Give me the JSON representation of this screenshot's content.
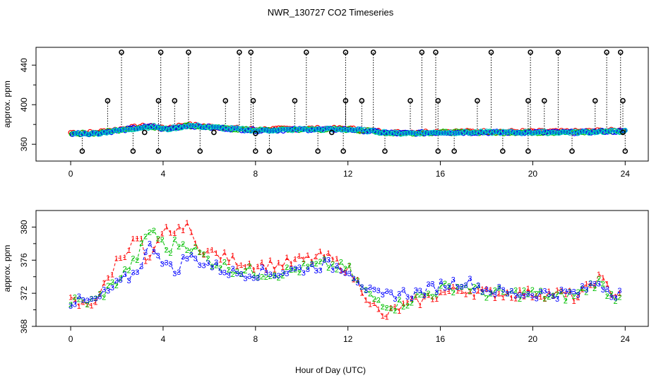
{
  "chart_data": [
    {
      "type": "scatter",
      "panel": "top",
      "title": "NWR_130727  CO2 Timeseries",
      "xlabel": "",
      "ylabel": "approx. ppm",
      "xlim": [
        -1.5,
        25
      ],
      "ylim": [
        343,
        458
      ],
      "xticks": [
        "0",
        "4",
        "8",
        "12",
        "16",
        "20",
        "24"
      ],
      "yticks": [
        "360",
        "400",
        "440"
      ],
      "marker": "o",
      "series_colors": [
        "#ff0000",
        "#00c000",
        "#0000ff",
        "#00cccc"
      ],
      "baseline_knots": [
        [
          0,
          371
        ],
        [
          1,
          371
        ],
        [
          2,
          374
        ],
        [
          3,
          377
        ],
        [
          3.5,
          378
        ],
        [
          4,
          375
        ],
        [
          5,
          379
        ],
        [
          6,
          377
        ],
        [
          8,
          374
        ],
        [
          10,
          375
        ],
        [
          12,
          375
        ],
        [
          13,
          373
        ],
        [
          14,
          371
        ],
        [
          16,
          372
        ],
        [
          18,
          372
        ],
        [
          20,
          372
        ],
        [
          22,
          372
        ],
        [
          23,
          373
        ],
        [
          24,
          373
        ]
      ],
      "flagged_high": [
        [
          2.2,
          453
        ],
        [
          3.9,
          453
        ],
        [
          5.1,
          453
        ],
        [
          7.3,
          453
        ],
        [
          7.8,
          453
        ],
        [
          10.2,
          453
        ],
        [
          11.9,
          453
        ],
        [
          13.1,
          453
        ],
        [
          15.2,
          453
        ],
        [
          15.8,
          453
        ],
        [
          18.2,
          453
        ],
        [
          19.9,
          453
        ],
        [
          21.1,
          453
        ],
        [
          23.2,
          453
        ],
        [
          23.8,
          453
        ],
        [
          1.6,
          404
        ],
        [
          3.8,
          404
        ],
        [
          4.5,
          404
        ],
        [
          6.7,
          404
        ],
        [
          7.9,
          404
        ],
        [
          9.7,
          404
        ],
        [
          11.9,
          404
        ],
        [
          12.6,
          404
        ],
        [
          14.7,
          404
        ],
        [
          15.9,
          404
        ],
        [
          17.6,
          404
        ],
        [
          19.8,
          404
        ],
        [
          20.5,
          404
        ],
        [
          22.7,
          404
        ],
        [
          23.9,
          404
        ]
      ],
      "flagged_low": [
        [
          0.5,
          353
        ],
        [
          2.7,
          353
        ],
        [
          3.8,
          353
        ],
        [
          5.6,
          353
        ],
        [
          8.0,
          353
        ],
        [
          8.6,
          353
        ],
        [
          10.7,
          353
        ],
        [
          11.8,
          353
        ],
        [
          13.6,
          353
        ],
        [
          15.9,
          353
        ],
        [
          16.6,
          353
        ],
        [
          18.7,
          353
        ],
        [
          19.8,
          353
        ],
        [
          21.7,
          353
        ],
        [
          24.0,
          353
        ]
      ],
      "mid_markers": [
        [
          3.2,
          372
        ],
        [
          6.2,
          372
        ],
        [
          8.0,
          371
        ],
        [
          11.3,
          372
        ],
        [
          23.9,
          372
        ]
      ]
    },
    {
      "type": "scatter",
      "panel": "bottom",
      "title": "",
      "xlabel": "Hour of Day (UTC)",
      "ylabel": "approx. ppm",
      "xlim": [
        -1.5,
        25
      ],
      "ylim": [
        368,
        382
      ],
      "xticks": [
        "0",
        "4",
        "8",
        "12",
        "16",
        "20",
        "24"
      ],
      "yticks": [
        "368",
        "372",
        "376",
        "380"
      ],
      "series": [
        {
          "name": "1",
          "color": "#ff0000",
          "knots": [
            [
              0,
              371
            ],
            [
              0.5,
              370.5
            ],
            [
              1,
              371
            ],
            [
              1.5,
              373
            ],
            [
              2,
              376
            ],
            [
              2.5,
              377.5
            ],
            [
              3,
              379
            ],
            [
              3.3,
              375
            ],
            [
              3.8,
              378
            ],
            [
              4.2,
              380
            ],
            [
              4.6,
              379
            ],
            [
              5,
              381
            ],
            [
              5.3,
              378
            ],
            [
              6,
              377
            ],
            [
              7,
              376
            ],
            [
              8,
              375.5
            ],
            [
              9,
              375.5
            ],
            [
              10,
              376
            ],
            [
              11,
              376.5
            ],
            [
              12,
              375
            ],
            [
              12.5,
              373
            ],
            [
              13,
              371
            ],
            [
              13.5,
              369
            ],
            [
              14,
              370
            ],
            [
              15,
              371
            ],
            [
              16,
              372
            ],
            [
              17,
              372.5
            ],
            [
              18,
              372
            ],
            [
              19,
              372
            ],
            [
              20,
              372
            ],
            [
              21,
              372
            ],
            [
              22,
              371.5
            ],
            [
              22.8,
              374
            ],
            [
              23.5,
              372
            ],
            [
              23.8,
              372
            ]
          ]
        },
        {
          "name": "2",
          "color": "#00c000",
          "knots": [
            [
              0,
              371
            ],
            [
              1,
              371
            ],
            [
              2,
              373.5
            ],
            [
              2.8,
              376
            ],
            [
              3.5,
              380
            ],
            [
              4.2,
              377
            ],
            [
              4.5,
              378
            ],
            [
              5,
              378
            ],
            [
              6,
              376
            ],
            [
              7,
              375
            ],
            [
              8,
              374.5
            ],
            [
              9,
              374.5
            ],
            [
              10,
              375
            ],
            [
              11,
              375.5
            ],
            [
              12,
              375
            ],
            [
              12.5,
              373
            ],
            [
              13,
              371.5
            ],
            [
              13.5,
              371
            ],
            [
              14,
              370.5
            ],
            [
              15,
              371.5
            ],
            [
              16,
              372.5
            ],
            [
              17,
              373
            ],
            [
              18,
              372
            ],
            [
              19,
              372
            ],
            [
              20,
              372
            ],
            [
              21,
              371.5
            ],
            [
              22,
              372
            ],
            [
              22.8,
              373.5
            ],
            [
              23.5,
              371.5
            ],
            [
              23.8,
              372
            ]
          ]
        },
        {
          "name": "3",
          "color": "#0000ff",
          "knots": [
            [
              0,
              371
            ],
            [
              1,
              371
            ],
            [
              2,
              373
            ],
            [
              2.8,
              374.5
            ],
            [
              3.5,
              378
            ],
            [
              4,
              376
            ],
            [
              4.5,
              374.5
            ],
            [
              5,
              376.5
            ],
            [
              6,
              375.5
            ],
            [
              7,
              374.5
            ],
            [
              8,
              374.5
            ],
            [
              9,
              374.5
            ],
            [
              10,
              375
            ],
            [
              11,
              375.5
            ],
            [
              12,
              375
            ],
            [
              12.5,
              373.5
            ],
            [
              13,
              372
            ],
            [
              13.5,
              371.5
            ],
            [
              14,
              372
            ],
            [
              15,
              372
            ],
            [
              16,
              373
            ],
            [
              17,
              373.5
            ],
            [
              18,
              372.5
            ],
            [
              19,
              372
            ],
            [
              20,
              372
            ],
            [
              21,
              372
            ],
            [
              22,
              372
            ],
            [
              22.8,
              373.5
            ],
            [
              23.5,
              372
            ],
            [
              23.8,
              372.5
            ]
          ]
        }
      ]
    }
  ]
}
